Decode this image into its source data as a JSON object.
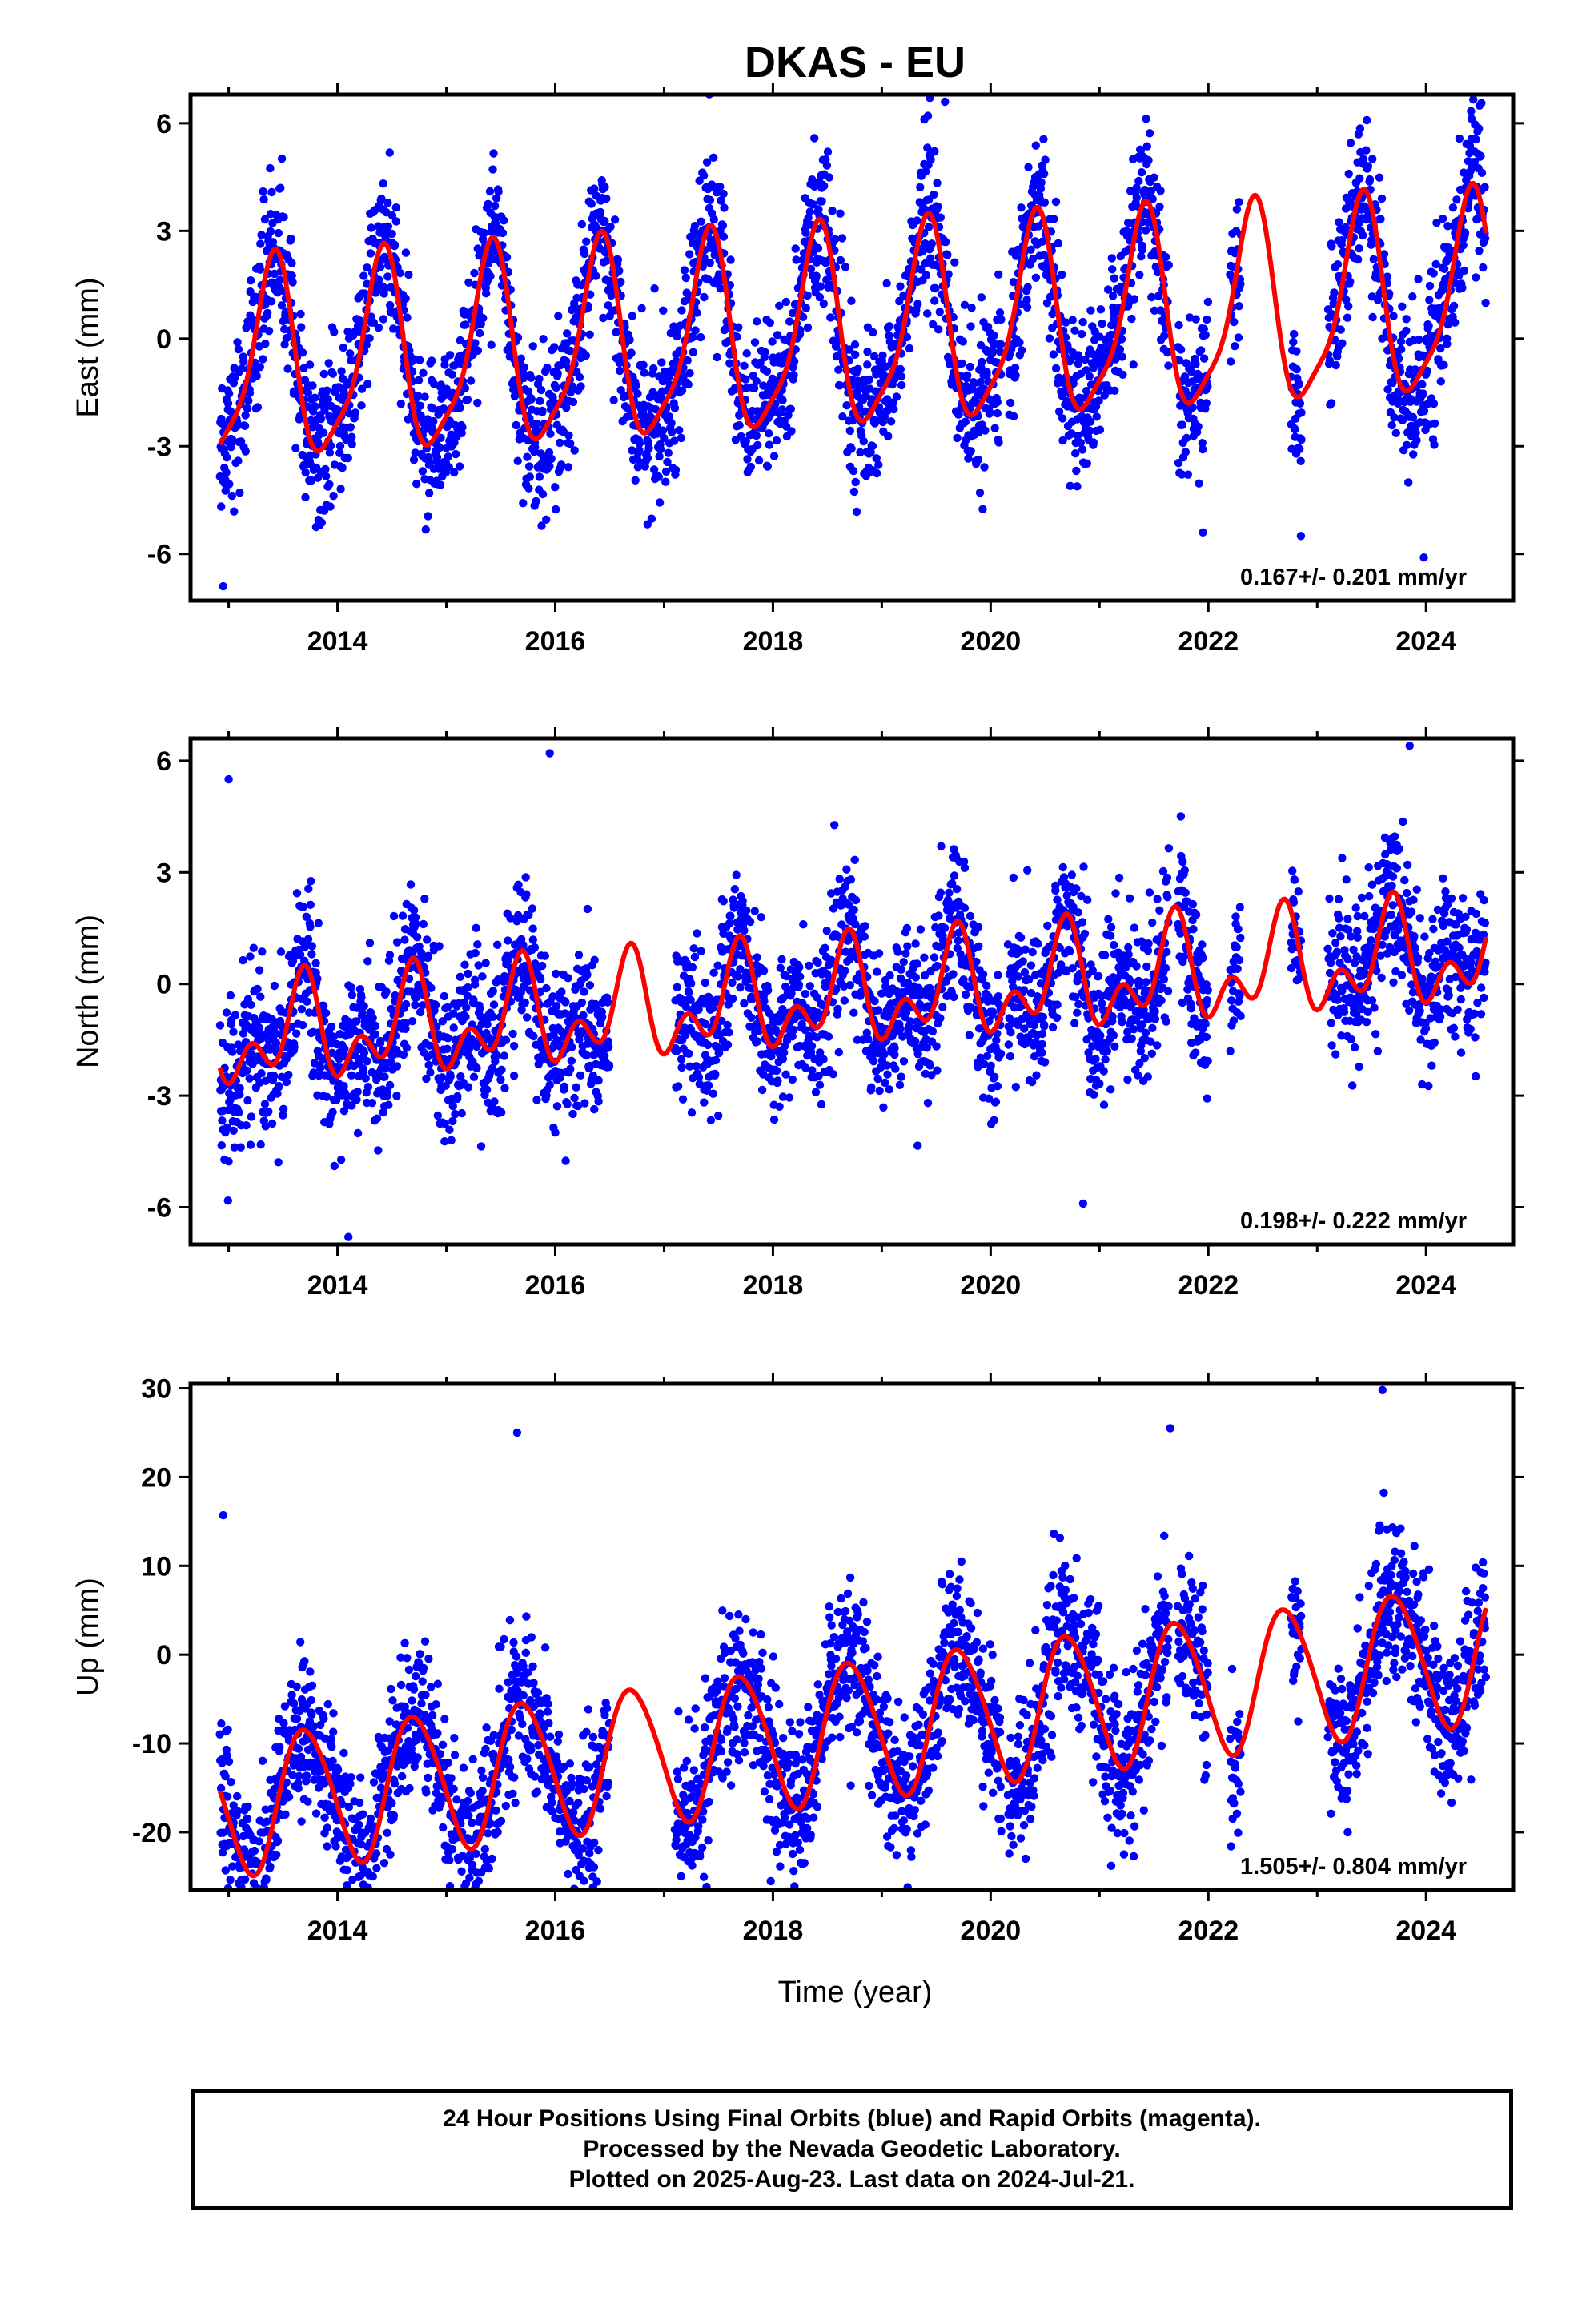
{
  "title": "DKAS - EU",
  "xlabel": "Time (year)",
  "colors": {
    "points": "#0000ff",
    "fit": "#ff0000",
    "frame": "#000000"
  },
  "footer": {
    "line1": "24 Hour Positions Using Final Orbits (blue) and Rapid Orbits (magenta).",
    "line2": "Processed by the Nevada Geodetic Laboratory.",
    "line3": "Plotted on 2025-Aug-23. Last data on 2024-Jul-21."
  },
  "chart_data": [
    {
      "type": "scatter",
      "panel": "east",
      "ylabel": "East (mm)",
      "xlim": [
        2012.65,
        2024.8
      ],
      "ylim": [
        -7.3,
        6.8
      ],
      "xticks": [
        "2014",
        "2016",
        "2018",
        "2020",
        "2022",
        "2024"
      ],
      "yticks": [
        "-6",
        "-3",
        "0",
        "3",
        "6"
      ],
      "rate_text": "0.167+/- 0.201 mm/yr",
      "grid": false,
      "point_series": {
        "name": "",
        "segments": [
          [
            2012.92,
            2020.1
          ],
          [
            2020.16,
            2021.64
          ],
          [
            2021.72,
            2022.0
          ],
          [
            2022.2,
            2022.3
          ],
          [
            2022.76,
            2022.86
          ],
          [
            2023.1,
            2024.55
          ]
        ],
        "note_outliers": [
          [
            2012.95,
            -6.9
          ],
          [
            2019.58,
            6.6
          ],
          [
            2021.95,
            -5.4
          ],
          [
            2022.85,
            -5.5
          ],
          [
            2023.98,
            -6.1
          ]
        ]
      },
      "fit_series": {
        "name": "",
        "x_range": [
          2012.92,
          2024.55
        ],
        "rate": 0.167,
        "offset": 0.1,
        "annual_cos": -2.2,
        "annual_sin": 1.55,
        "semiannual_cos": 0.55,
        "semiannual_sin": -0.35
      }
    },
    {
      "type": "scatter",
      "panel": "north",
      "ylabel": "North (mm)",
      "xlim": [
        2012.65,
        2024.8
      ],
      "ylim": [
        -7.0,
        6.6
      ],
      "xticks": [
        "2014",
        "2016",
        "2018",
        "2020",
        "2022",
        "2024"
      ],
      "yticks": [
        "-6",
        "-3",
        "0",
        "3",
        "6"
      ],
      "rate_text": "0.198+/- 0.222 mm/yr",
      "grid": false,
      "point_series": {
        "name": "",
        "segments": [
          [
            2012.92,
            2016.5
          ],
          [
            2017.1,
            2020.1
          ],
          [
            2020.16,
            2021.64
          ],
          [
            2021.72,
            2022.0
          ],
          [
            2022.2,
            2022.3
          ],
          [
            2022.76,
            2022.86
          ],
          [
            2023.1,
            2024.55
          ]
        ],
        "note_outliers": [
          [
            2013.0,
            5.5
          ],
          [
            2015.95,
            6.2
          ],
          [
            2020.85,
            -5.9
          ],
          [
            2023.85,
            6.4
          ],
          [
            2014.1,
            -6.8
          ]
        ]
      },
      "fit_series": {
        "name": "",
        "x_range": [
          2012.92,
          2024.55
        ],
        "rate": 0.198,
        "offset": -0.35,
        "annual_cos": -0.5,
        "annual_sin": -0.9,
        "semiannual_cos": -0.7,
        "semiannual_sin": 0.45
      }
    },
    {
      "type": "scatter",
      "panel": "up",
      "ylabel": "Up (mm)",
      "xlim": [
        2012.65,
        2024.8
      ],
      "ylim": [
        -26.5,
        30.5
      ],
      "xticks": [
        "2014",
        "2016",
        "2018",
        "2020",
        "2022",
        "2024"
      ],
      "yticks": [
        "-20",
        "-10",
        "0",
        "10",
        "20",
        "30"
      ],
      "rate_text": "1.505+/- 0.804 mm/yr",
      "grid": false,
      "point_series": {
        "name": "",
        "segments": [
          [
            2012.92,
            2016.5
          ],
          [
            2017.1,
            2020.1
          ],
          [
            2020.16,
            2021.64
          ],
          [
            2021.72,
            2022.0
          ],
          [
            2022.2,
            2022.3
          ],
          [
            2022.76,
            2022.86
          ],
          [
            2023.1,
            2024.55
          ]
        ],
        "note_outliers": [
          [
            2012.95,
            15.7
          ],
          [
            2013.1,
            -24.0
          ],
          [
            2015.65,
            25.0
          ],
          [
            2017.98,
            -25.5
          ],
          [
            2023.6,
            29.8
          ],
          [
            2021.65,
            25.5
          ]
        ]
      },
      "fit_series": {
        "name": "",
        "x_range": [
          2012.92,
          2024.55
        ],
        "rate": 1.505,
        "offset": -8.5,
        "annual_cos": -2.0,
        "annual_sin": -7.5,
        "semiannual_cos": 0.6,
        "semiannual_sin": 0.4
      }
    }
  ]
}
